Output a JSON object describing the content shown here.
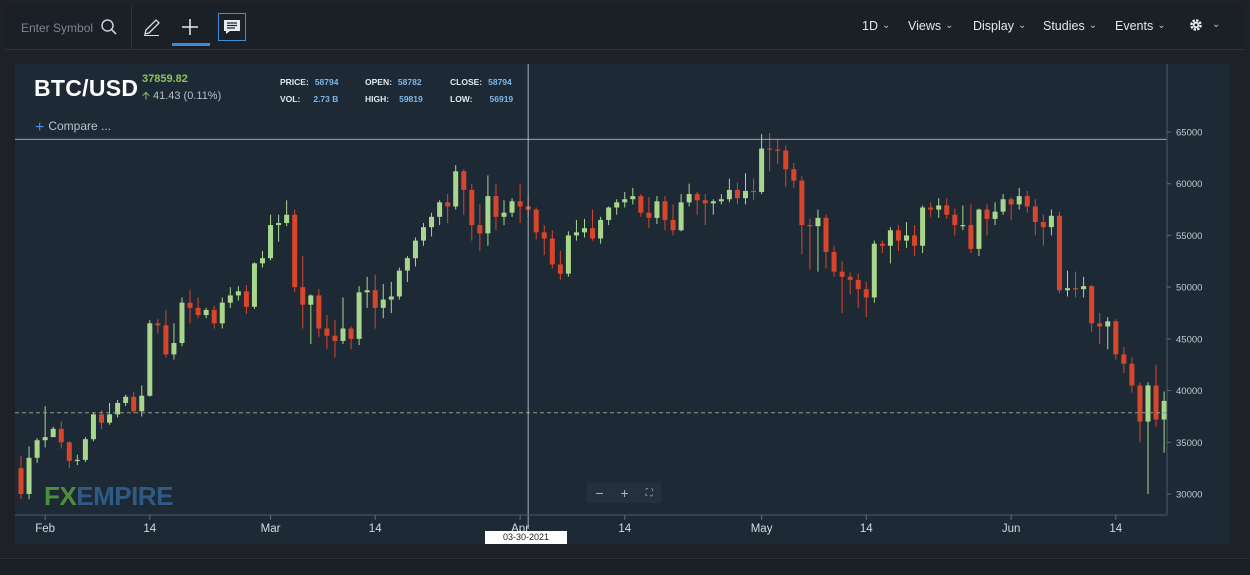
{
  "toolbar": {
    "search_placeholder": "Enter Symbol",
    "menus": [
      "1D",
      "Views",
      "Display",
      "Studies",
      "Events"
    ]
  },
  "header": {
    "symbol": "BTC/USD",
    "price": "37859.82",
    "change": "41.43 (0.11%)",
    "stats": {
      "price_label": "PRICE:",
      "price": "58794",
      "vol_label": "VOL:",
      "vol": "2.73 B",
      "open_label": "OPEN:",
      "open": "58782",
      "high_label": "HIGH:",
      "high": "59819",
      "close_label": "CLOSE:",
      "close": "58794",
      "low_label": "LOW:",
      "low": "56919"
    },
    "compare_label": "Compare ..."
  },
  "logo": {
    "fx": "FX",
    "empire": "EMPIRE"
  },
  "crosshair": {
    "date": "03-30-2021",
    "price": "64280"
  },
  "last_price_tag": "37859.82",
  "colors": {
    "up": "#a8d68a",
    "down": "#d9452b",
    "background": "#1d2a36",
    "last_price": "#8fc15b"
  },
  "chart_data": {
    "type": "candlestick",
    "title": "",
    "ylim": [
      29500,
      66000
    ],
    "y_ticks": [
      30000,
      35000,
      40000,
      45000,
      50000,
      55000,
      60000,
      65000
    ],
    "x_ticks": [
      {
        "label": "Feb",
        "day": 3
      },
      {
        "label": "14",
        "day": 16
      },
      {
        "label": "Mar",
        "day": 31
      },
      {
        "label": "14",
        "day": 44
      },
      {
        "label": "Apr",
        "day": 62
      },
      {
        "label": "14",
        "day": 75
      },
      {
        "label": "May",
        "day": 92
      },
      {
        "label": "14",
        "day": 105
      },
      {
        "label": "Jun",
        "day": 123
      },
      {
        "label": "14",
        "day": 136
      }
    ],
    "last_price": 37859.82,
    "candles": [
      [
        32500,
        30000,
        33700,
        29500
      ],
      [
        30000,
        33500,
        34600,
        29500
      ],
      [
        33500,
        35200,
        35400,
        33000
      ],
      [
        35200,
        35500,
        38500,
        34500
      ],
      [
        35500,
        36300,
        36500,
        35500
      ],
      [
        36300,
        35000,
        37000,
        34400
      ],
      [
        35000,
        33200,
        35100,
        32500
      ],
      [
        33200,
        33300,
        33800,
        32800
      ],
      [
        33300,
        35300,
        35500,
        33100
      ],
      [
        35300,
        37700,
        37900,
        35100
      ],
      [
        37700,
        36900,
        38100,
        36300
      ],
      [
        36900,
        37700,
        38800,
        36700
      ],
      [
        37700,
        38800,
        39100,
        37400
      ],
      [
        38800,
        39400,
        39600,
        38500
      ],
      [
        39400,
        38000,
        39900,
        37800
      ],
      [
        38000,
        39500,
        40500,
        37500
      ],
      [
        39500,
        46500,
        46800,
        39400
      ],
      [
        46500,
        46300,
        46900,
        45500
      ],
      [
        46300,
        43500,
        47800,
        43200
      ],
      [
        43500,
        44600,
        46500,
        43000
      ],
      [
        44600,
        48500,
        49000,
        44300
      ],
      [
        48500,
        48000,
        49700,
        46500
      ],
      [
        48000,
        47300,
        49000,
        47000
      ],
      [
        47300,
        47800,
        48000,
        47000
      ],
      [
        47800,
        46500,
        48200,
        46000
      ],
      [
        46500,
        48500,
        49000,
        46000
      ],
      [
        48500,
        49200,
        50000,
        48000
      ],
      [
        49200,
        49600,
        50100,
        48700
      ],
      [
        49600,
        48100,
        50200,
        47400
      ],
      [
        48100,
        52300,
        52400,
        47900
      ],
      [
        52300,
        52800,
        53500,
        51900
      ],
      [
        52800,
        56000,
        57000,
        52600
      ],
      [
        56000,
        56200,
        57000,
        54400
      ],
      [
        56200,
        57000,
        58400,
        55900
      ],
      [
        57000,
        50000,
        57500,
        49500
      ],
      [
        50000,
        48300,
        53000,
        46000
      ],
      [
        48300,
        49200,
        49300,
        44500
      ],
      [
        49200,
        46000,
        49800,
        45200
      ],
      [
        46000,
        45300,
        47300,
        44000
      ],
      [
        45300,
        44800,
        46800,
        43200
      ],
      [
        44800,
        46000,
        49000,
        44500
      ],
      [
        46000,
        45000,
        46200,
        44000
      ],
      [
        45000,
        49500,
        50100,
        44400
      ],
      [
        49500,
        49700,
        51000,
        48000
      ],
      [
        49700,
        48000,
        51200,
        46000
      ],
      [
        48000,
        48800,
        50300,
        47000
      ],
      [
        48800,
        49100,
        50500,
        47500
      ],
      [
        49100,
        51600,
        51900,
        48800
      ],
      [
        51600,
        52800,
        53000,
        50500
      ],
      [
        52800,
        54500,
        54800,
        52000
      ],
      [
        54500,
        55800,
        56200,
        54000
      ],
      [
        55800,
        56800,
        57200,
        54900
      ],
      [
        56800,
        58200,
        58400,
        56000
      ],
      [
        58200,
        57800,
        59000,
        56200
      ],
      [
        57800,
        61200,
        61800,
        57500
      ],
      [
        61200,
        59400,
        61400,
        57000
      ],
      [
        59400,
        56000,
        60000,
        54500
      ],
      [
        56000,
        55200,
        58000,
        53500
      ],
      [
        55200,
        58800,
        60800,
        54000
      ],
      [
        58800,
        56800,
        60000,
        55500
      ],
      [
        56800,
        57200,
        58400,
        56000
      ],
      [
        57200,
        58300,
        58600,
        56800
      ],
      [
        58300,
        57800,
        60000,
        56200
      ],
      [
        57800,
        57500,
        58700,
        56700
      ],
      [
        57500,
        55300,
        57700,
        54600
      ],
      [
        55300,
        54700,
        56000,
        53100
      ],
      [
        54700,
        52200,
        55500,
        51800
      ],
      [
        52200,
        51300,
        53500,
        50700
      ],
      [
        51300,
        55000,
        55400,
        51000
      ],
      [
        55000,
        55300,
        56500,
        54500
      ],
      [
        55300,
        55700,
        56600,
        54800
      ],
      [
        55700,
        54700,
        57500,
        54500
      ],
      [
        54700,
        56500,
        56800,
        54200
      ],
      [
        56500,
        57700,
        57800,
        56000
      ],
      [
        57700,
        58200,
        58500,
        57000
      ],
      [
        58200,
        58500,
        59200,
        57700
      ],
      [
        58500,
        58800,
        59600,
        58000
      ],
      [
        58800,
        57200,
        59000,
        56800
      ],
      [
        57200,
        56700,
        58700,
        55700
      ],
      [
        56700,
        58300,
        58800,
        56100
      ],
      [
        58300,
        56500,
        58800,
        55500
      ],
      [
        56500,
        55500,
        58000,
        55000
      ],
      [
        55500,
        58200,
        59000,
        55400
      ],
      [
        58200,
        59000,
        60000,
        57800
      ],
      [
        59000,
        58400,
        59200,
        57000
      ],
      [
        58400,
        58100,
        59000,
        56000
      ],
      [
        58100,
        58300,
        58500,
        57000
      ],
      [
        58300,
        58500,
        59000,
        58000
      ],
      [
        58500,
        59400,
        60500,
        58200
      ],
      [
        59400,
        58600,
        60100,
        58000
      ],
      [
        58600,
        59300,
        61000,
        58000
      ],
      [
        59300,
        59200,
        60500,
        58400
      ],
      [
        59200,
        63400,
        64800,
        59000
      ],
      [
        63400,
        63300,
        64900,
        61200
      ],
      [
        63300,
        63200,
        64300,
        61900
      ],
      [
        63200,
        61400,
        63700,
        59700
      ],
      [
        61400,
        60300,
        62000,
        59600
      ],
      [
        60300,
        56000,
        60700,
        53200
      ],
      [
        56000,
        55900,
        56600,
        51700
      ],
      [
        55900,
        56700,
        57500,
        51500
      ],
      [
        56700,
        53400,
        57000,
        51800
      ],
      [
        53400,
        51500,
        54000,
        51000
      ],
      [
        51500,
        51000,
        52500,
        47500
      ],
      [
        51000,
        50700,
        51400,
        49300
      ],
      [
        50700,
        49800,
        51300,
        48000
      ],
      [
        49800,
        49000,
        50500,
        47100
      ],
      [
        49000,
        54200,
        54500,
        48500
      ],
      [
        54200,
        54000,
        54500,
        53300
      ],
      [
        54000,
        55500,
        55800,
        52300
      ],
      [
        55500,
        54500,
        56000,
        53500
      ],
      [
        54500,
        55000,
        56300,
        53800
      ],
      [
        55000,
        54000,
        56000,
        53000
      ],
      [
        54000,
        57700,
        57900,
        53300
      ],
      [
        57700,
        57500,
        58200,
        56800
      ],
      [
        57500,
        57900,
        58600,
        56700
      ],
      [
        57900,
        57000,
        58600,
        56600
      ],
      [
        57000,
        56000,
        57600,
        55000
      ],
      [
        56000,
        56000,
        57900,
        55500
      ],
      [
        56000,
        53700,
        58000,
        53300
      ],
      [
        53700,
        57500,
        57600,
        53000
      ],
      [
        57500,
        56600,
        58000,
        55000
      ],
      [
        56600,
        57300,
        58200,
        56000
      ],
      [
        57300,
        58500,
        59000,
        57000
      ],
      [
        58500,
        58000,
        58700,
        56500
      ],
      [
        58000,
        58800,
        59600,
        57500
      ],
      [
        58800,
        57800,
        59300,
        57200
      ],
      [
        57800,
        56300,
        58500,
        55000
      ],
      [
        56300,
        55800,
        57000,
        54000
      ],
      [
        55800,
        56900,
        57500,
        55000
      ],
      [
        56900,
        49700,
        57300,
        49400
      ],
      [
        49700,
        49900,
        51600,
        49100
      ],
      [
        49900,
        49800,
        51500,
        49000
      ],
      [
        49800,
        50100,
        51000,
        49000
      ],
      [
        50100,
        46500,
        50200,
        45700
      ],
      [
        46500,
        46200,
        47500,
        44500
      ],
      [
        46200,
        46700,
        47100,
        44000
      ],
      [
        46700,
        43500,
        46900,
        43000
      ],
      [
        43500,
        42600,
        44200,
        41700
      ],
      [
        42600,
        40500,
        43200,
        39800
      ],
      [
        40500,
        37000,
        40800,
        35000
      ],
      [
        37000,
        40500,
        40800,
        30000
      ],
      [
        40500,
        37200,
        42500,
        36500
      ],
      [
        37200,
        39000,
        39900,
        34000
      ],
      [
        39000,
        38500,
        39100,
        36200
      ],
      [
        38500,
        35400,
        39100,
        33500
      ],
      [
        35400,
        36700,
        37900,
        34500
      ],
      [
        36700,
        39300,
        39500,
        36000
      ],
      [
        39300,
        39300,
        40000,
        38000
      ],
      [
        39300,
        38400,
        40800,
        37500
      ],
      [
        38400,
        40200,
        41200,
        38000
      ],
      [
        40200,
        39300,
        40500,
        38500
      ],
      [
        39300,
        39000,
        40500,
        37000
      ],
      [
        39000,
        37800,
        40300,
        37200
      ],
      [
        37800,
        36200,
        39500,
        35200
      ],
      [
        36200,
        35300,
        36800,
        34000
      ],
      [
        35300,
        35700,
        36000,
        33800
      ],
      [
        35700,
        36500,
        37500,
        35000
      ],
      [
        36500,
        37300,
        38000,
        36000
      ],
      [
        37300,
        37500,
        38000,
        36800
      ],
      [
        37500,
        37800,
        38500,
        36500
      ],
      [
        37800,
        39000,
        39500,
        37500
      ],
      [
        39000,
        38700,
        39300,
        38000
      ],
      [
        38700,
        37600,
        39300,
        36800
      ],
      [
        37600,
        37000,
        38300,
        36000
      ],
      [
        37000,
        36400,
        37600,
        35500
      ],
      [
        36400,
        35900,
        36700,
        35000
      ],
      [
        35900,
        35500,
        36500,
        34400
      ],
      [
        35500,
        34500,
        36000,
        33500
      ],
      [
        34500,
        33500,
        35000,
        32800
      ],
      [
        33500,
        33200,
        34600,
        31100
      ],
      [
        33200,
        37600,
        37700,
        33000
      ],
      [
        37600,
        37700,
        37900,
        36500
      ],
      [
        37700,
        36900,
        38100,
        36200
      ],
      [
        36900,
        37600,
        38200,
        36700
      ],
      [
        37600,
        36900,
        38500,
        35100
      ],
      [
        36900,
        35600,
        37400,
        35000
      ],
      [
        35600,
        38900,
        39300,
        35400
      ],
      [
        38900,
        40600,
        41200,
        38500
      ],
      [
        40600,
        40400,
        41100,
        39000
      ],
      [
        40400,
        38900,
        40800,
        38400
      ],
      [
        38900,
        38300,
        39000,
        37900
      ],
      [
        38300,
        38000,
        38500,
        37600
      ],
      [
        38000,
        37900,
        38300,
        37600
      ],
      [
        37900,
        37860,
        38100,
        37600
      ]
    ]
  }
}
